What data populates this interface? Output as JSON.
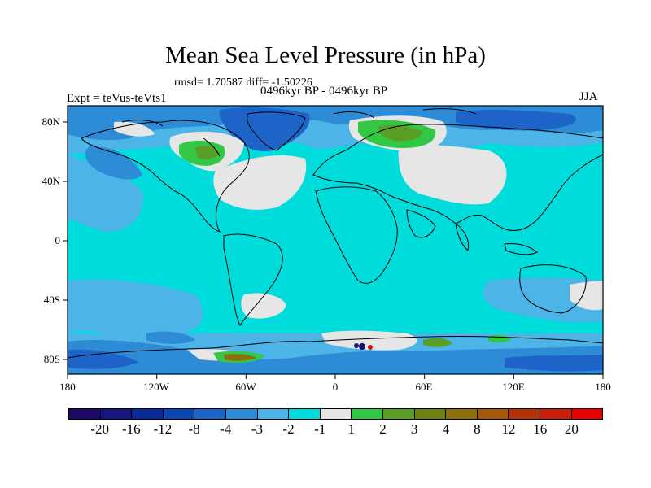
{
  "title": "Mean Sea Level Pressure (in hPa)",
  "stats": "rmsd= 1.70587 diff= -1.50226",
  "experiment": "Expt = teVus-teVts1",
  "period": "0496kyr BP - 0496kyr BP",
  "season": "JJA",
  "lat_ticks": [
    "80N",
    "40N",
    "0",
    "40S",
    "80S"
  ],
  "lon_ticks": [
    "180",
    "120W",
    "60W",
    "0",
    "60E",
    "120E",
    "180"
  ],
  "colorbar": {
    "labels": [
      "-20",
      "-16",
      "-12",
      "-8",
      "-4",
      "-3",
      "-2",
      "-1",
      "1",
      "2",
      "3",
      "4",
      "8",
      "12",
      "16",
      "20"
    ],
    "colors": [
      "#1e0a64",
      "#17157f",
      "#0a2a9a",
      "#0a46b4",
      "#1e64c8",
      "#2e8cd6",
      "#4cb4e6",
      "#00dcdc",
      "#e6e6e6",
      "#32c846",
      "#5a9e28",
      "#6e8214",
      "#8c6e0a",
      "#a05a0a",
      "#b4320a",
      "#c81e0a",
      "#e60000"
    ]
  },
  "colors": {
    "background_field": "#00dcdc",
    "neutral": "#e6e6e6",
    "weak_negative": "#4cb4e6",
    "moderate_negative": "#2e8cd6",
    "strong_negative": "#1e64c8",
    "weak_positive": "#32c846",
    "moderate_positive": "#5a9e28",
    "strong_positive": "#8c6e0a"
  }
}
